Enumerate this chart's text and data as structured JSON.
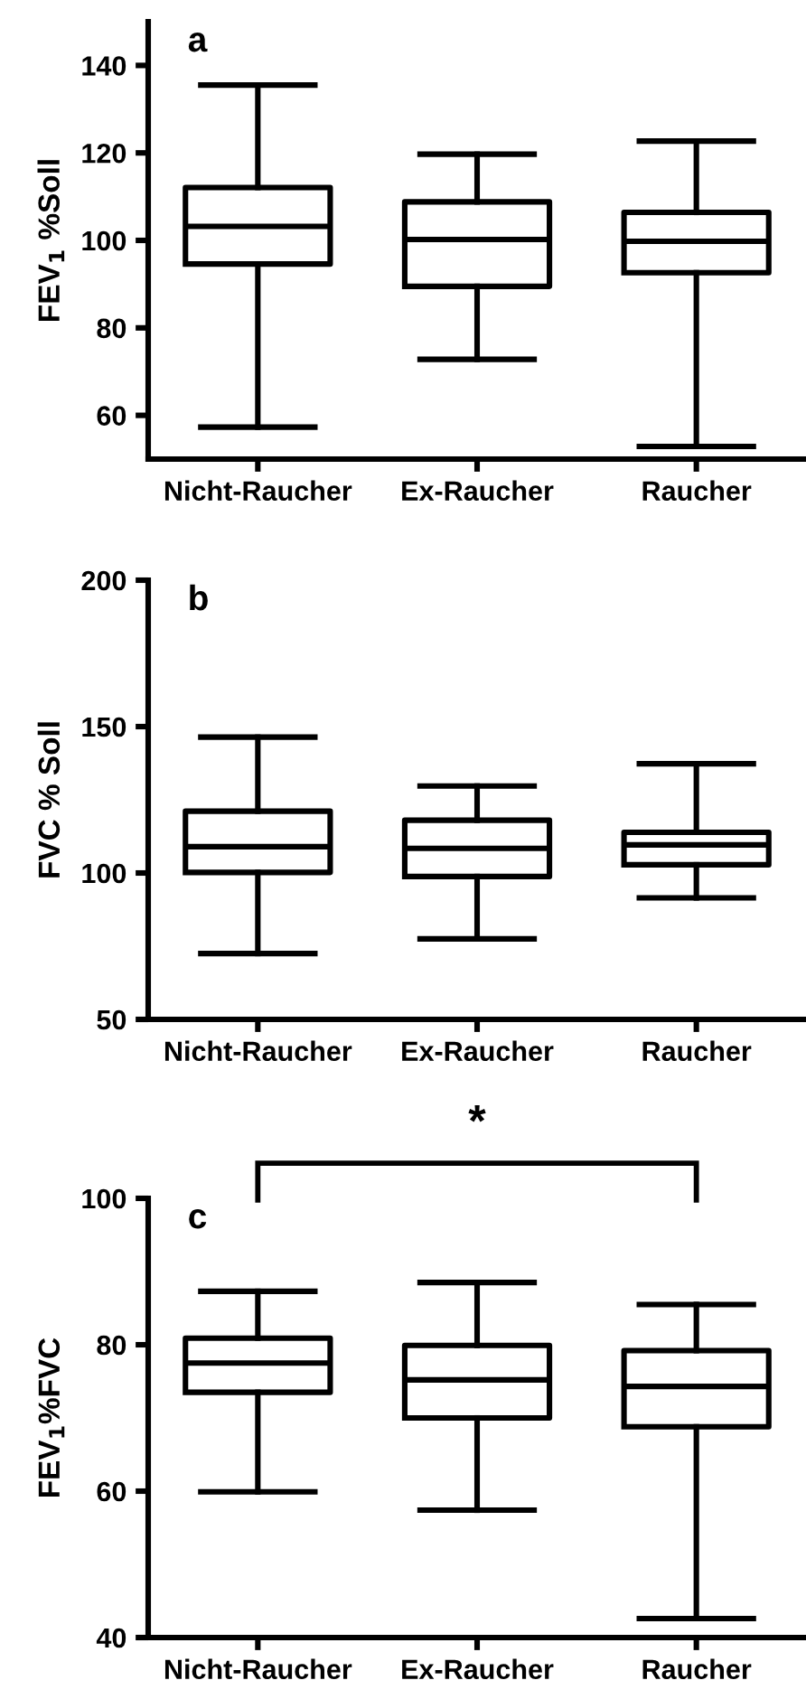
{
  "chart_data": [
    {
      "type": "box",
      "title": "a",
      "ylabel": "FEV$_{1}$ %Soll",
      "categories": [
        "Nicht-Raucher",
        "Ex-Raucher",
        "Raucher"
      ],
      "ylim": [
        50,
        150
      ],
      "yticks": [
        60,
        80,
        100,
        120,
        140
      ],
      "grid": false,
      "boxes": [
        {
          "low": 57.3,
          "q1": 94.6,
          "median": 103.2,
          "q3": 112.1,
          "high": 135.5
        },
        {
          "low": 72.8,
          "q1": 89.5,
          "median": 100.2,
          "q3": 108.8,
          "high": 119.7
        },
        {
          "low": 52.9,
          "q1": 92.6,
          "median": 99.8,
          "q3": 106.4,
          "high": 122.7
        }
      ]
    },
    {
      "type": "box",
      "title": "b",
      "ylabel": "FVC % Soll",
      "categories": [
        "Nicht-Raucher",
        "Ex-Raucher",
        "Raucher"
      ],
      "ylim": [
        50,
        200
      ],
      "yticks": [
        50,
        100,
        150,
        200
      ],
      "grid": false,
      "boxes": [
        {
          "low": 72.5,
          "q1": 100.2,
          "median": 109.0,
          "q3": 121.1,
          "high": 146.4
        },
        {
          "low": 77.5,
          "q1": 98.8,
          "median": 108.4,
          "q3": 118.0,
          "high": 129.7
        },
        {
          "low": 91.5,
          "q1": 102.8,
          "median": 109.6,
          "q3": 113.9,
          "high": 137.3
        }
      ]
    },
    {
      "type": "box",
      "title": "c",
      "ylabel": "FEV$_{1}$%FVC",
      "categories": [
        "Nicht-Raucher",
        "Ex-Raucher",
        "Raucher"
      ],
      "ylim": [
        40,
        100
      ],
      "yticks": [
        40,
        60,
        80,
        100
      ],
      "grid": false,
      "annotations": [
        "*"
      ],
      "boxes": [
        {
          "low": 59.9,
          "q1": 73.5,
          "median": 77.5,
          "q3": 80.9,
          "high": 87.3
        },
        {
          "low": 57.4,
          "q1": 70.0,
          "median": 75.2,
          "q3": 79.9,
          "high": 88.5
        },
        {
          "low": 42.6,
          "q1": 68.8,
          "median": 74.3,
          "q3": 79.2,
          "high": 85.5
        }
      ]
    }
  ]
}
